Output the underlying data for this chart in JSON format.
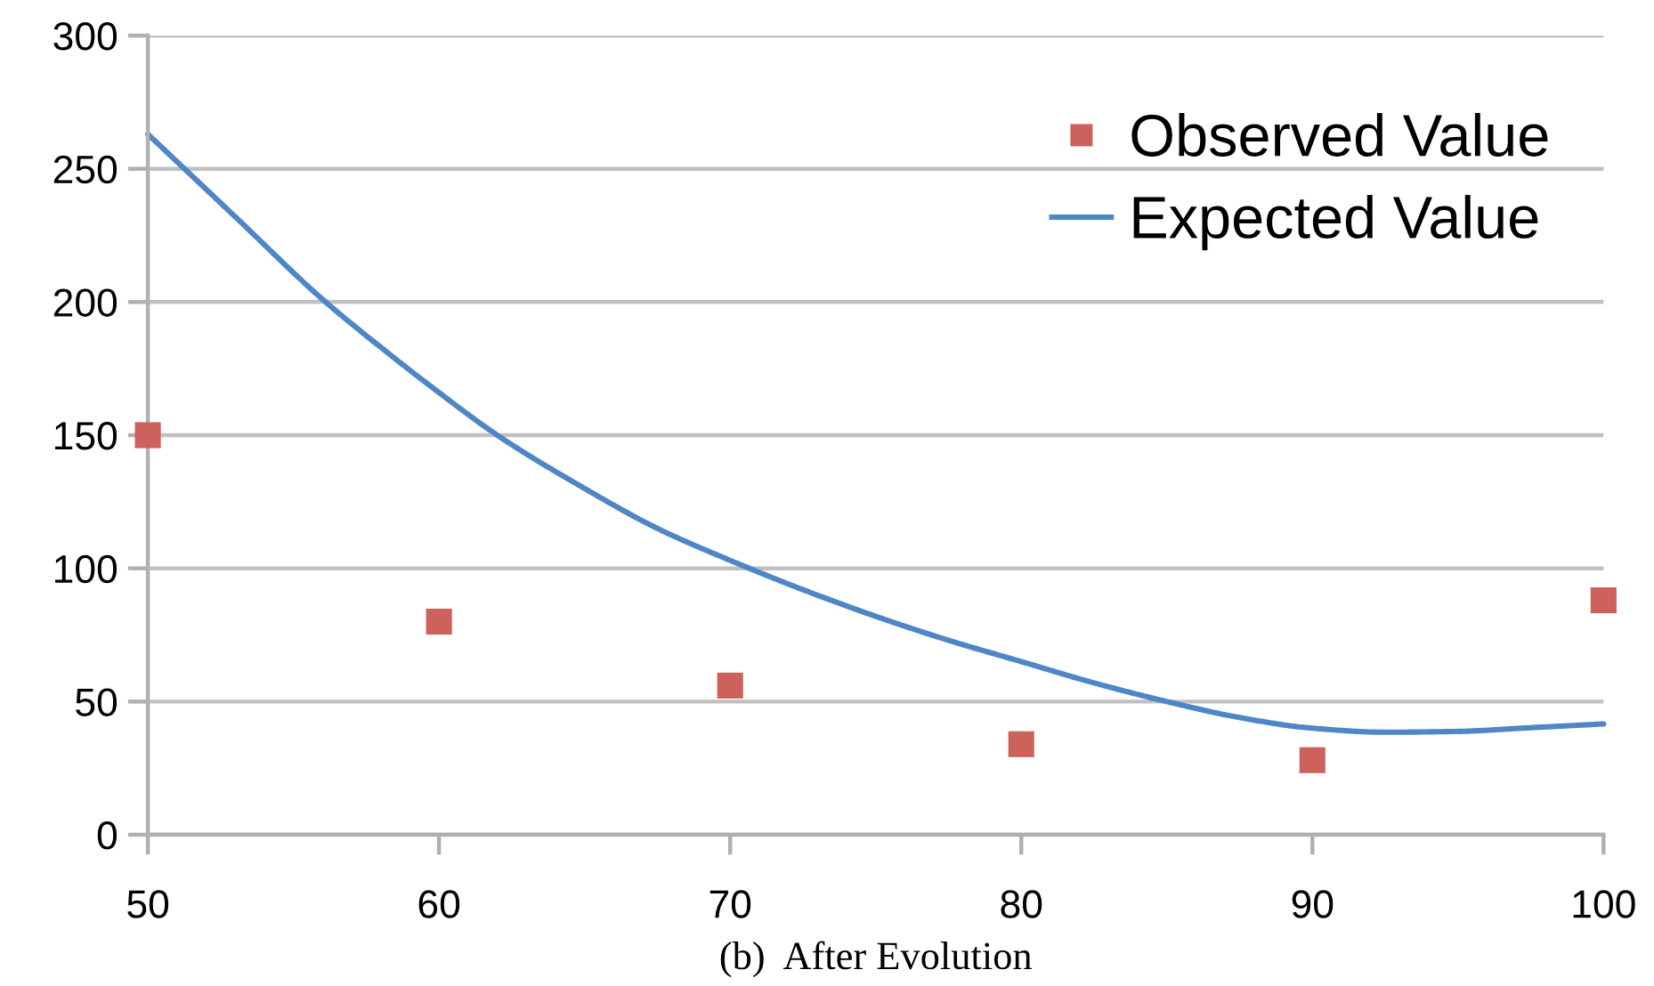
{
  "chart_data": {
    "type": "line",
    "title": "(b)  After Evolution",
    "xlim": [
      50,
      100
    ],
    "xticks": [
      50,
      60,
      70,
      80,
      90,
      100
    ],
    "ylim": [
      0,
      300
    ],
    "yticks": [
      0,
      50,
      100,
      150,
      200,
      250,
      300
    ],
    "grid": "y",
    "legend": "top right",
    "series": [
      {
        "name": "Observed Value",
        "type": "scatter",
        "marker": "square",
        "color": "#cd615c",
        "x": [
          50,
          60,
          70,
          80,
          90,
          100
        ],
        "values": [
          150,
          80,
          56,
          34,
          28,
          88
        ]
      },
      {
        "name": "Expected Value",
        "marker": "none",
        "line_style": "solid",
        "color": "#4f86c6",
        "x": [
          50,
          53,
          56,
          58,
          60,
          62,
          65,
          67.5,
          70,
          72.5,
          75,
          77.5,
          80,
          82.5,
          85,
          87.5,
          90,
          92.5,
          95,
          97.5,
          100
        ],
        "values": [
          263,
          232,
          201,
          183,
          166,
          150,
          130,
          115,
          103,
          92,
          82,
          73,
          65,
          57,
          50,
          44,
          40,
          38.5,
          38.8,
          40.2,
          41.6
        ]
      }
    ]
  }
}
